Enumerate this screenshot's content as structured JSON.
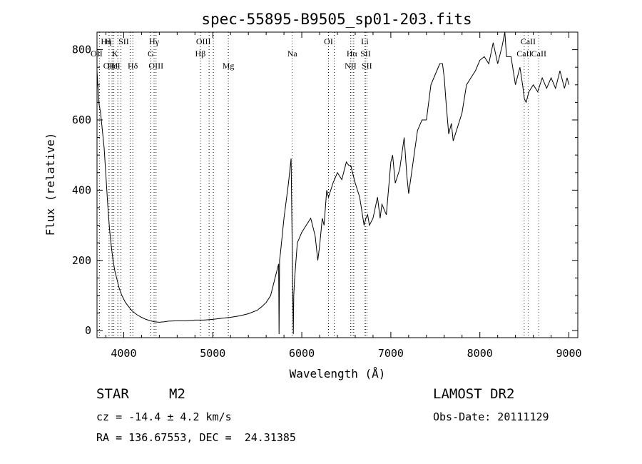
{
  "chart_data": {
    "type": "line",
    "title": "spec-55895-B9505_sp01-203.fits",
    "xlabel": "Wavelength (Å)",
    "ylabel": "Flux (relative)",
    "xlim": [
      3700,
      9100
    ],
    "ylim": [
      -20,
      850
    ],
    "grid": false,
    "x_ticks": [
      4000,
      5000,
      6000,
      7000,
      8000,
      9000
    ],
    "y_ticks": [
      0,
      200,
      400,
      600,
      800
    ],
    "series": [
      {
        "x": [
          3700,
          3720,
          3740,
          3760,
          3780,
          3800,
          3820,
          3840,
          3860,
          3880,
          3900,
          3920,
          3950,
          3980,
          4000,
          4020,
          4050,
          4080,
          4100,
          4150,
          4200,
          4250,
          4300,
          4350,
          4400,
          4450,
          4500,
          4600,
          4700,
          4800,
          4900,
          5000,
          5100,
          5200,
          5300,
          5400,
          5500,
          5550,
          5600,
          5650,
          5700,
          5740,
          5745,
          5750,
          5760,
          5800,
          5850,
          5880,
          5900,
          5905,
          5910,
          5920,
          5950,
          6000,
          6050,
          6100,
          6150,
          6180,
          6200,
          6230,
          6250,
          6280,
          6300,
          6350,
          6400,
          6450,
          6500,
          6530,
          6550,
          6570,
          6600,
          6650,
          6700,
          6720,
          6740,
          6760,
          6800,
          6850,
          6880,
          6900,
          6950,
          6980,
          7000,
          7020,
          7050,
          7100,
          7150,
          7180,
          7200,
          7250,
          7300,
          7350,
          7400,
          7450,
          7500,
          7550,
          7580,
          7600,
          7620,
          7650,
          7680,
          7700,
          7750,
          7800,
          7850,
          7900,
          7950,
          8000,
          8050,
          8100,
          8150,
          8200,
          8250,
          8280,
          8300,
          8350,
          8400,
          8450,
          8480,
          8500,
          8520,
          8550,
          8600,
          8650,
          8700,
          8750,
          8800,
          8850,
          8900,
          8950,
          8980,
          9000
        ],
        "y": [
          740,
          650,
          620,
          570,
          520,
          440,
          360,
          290,
          240,
          200,
          170,
          150,
          120,
          100,
          90,
          80,
          70,
          60,
          55,
          45,
          38,
          32,
          28,
          25,
          24,
          25,
          27,
          28,
          28,
          30,
          30,
          32,
          35,
          38,
          42,
          48,
          58,
          68,
          80,
          100,
          150,
          190,
          -10,
          200,
          220,
          320,
          420,
          490,
          80,
          -10,
          100,
          150,
          250,
          280,
          300,
          320,
          270,
          200,
          240,
          320,
          300,
          400,
          380,
          420,
          450,
          430,
          480,
          470,
          470,
          450,
          420,
          380,
          300,
          320,
          330,
          300,
          320,
          380,
          320,
          360,
          330,
          420,
          480,
          500,
          420,
          460,
          550,
          440,
          390,
          480,
          570,
          600,
          600,
          700,
          730,
          760,
          760,
          720,
          650,
          560,
          590,
          540,
          580,
          620,
          700,
          720,
          740,
          770,
          780,
          760,
          820,
          760,
          810,
          860,
          780,
          780,
          700,
          750,
          700,
          660,
          650,
          680,
          700,
          680,
          720,
          690,
          720,
          690,
          740,
          690,
          720,
          700
        ]
      }
    ],
    "lines": [
      {
        "label": "OII",
        "wl": 3727,
        "row": 2,
        "color": "#000000",
        "dx": -4
      },
      {
        "label": "Hη",
        "wl": 3835,
        "row": 0,
        "color": "#000000",
        "dx": -4
      },
      {
        "label": "OIII",
        "wl": 3869,
        "row": 3,
        "color": "#000000",
        "dx": -2
      },
      {
        "label": "HeI",
        "wl": 3889,
        "row": 3,
        "color": "#000000",
        "dx": 0
      },
      {
        "label": "K",
        "wl": 3934,
        "row": 2,
        "color": "#000000",
        "dx": -4
      },
      {
        "label": "H",
        "wl": 3969,
        "row": 0,
        "color": "#000000",
        "dx": -18
      },
      {
        "label": "SII",
        "wl": 4072,
        "row": 0,
        "color": "#000000",
        "dx": -9
      },
      {
        "label": "Hδ",
        "wl": 4102,
        "row": 3,
        "color": "#000000",
        "dx": 0
      },
      {
        "label": "G",
        "wl": 4304,
        "row": 2,
        "color": "#000000",
        "dx": 0
      },
      {
        "label": "Hγ",
        "wl": 4341,
        "row": 0,
        "color": "#000000",
        "dx": 0
      },
      {
        "label": "OIII",
        "wl": 4363,
        "row": 3,
        "color": "#000000",
        "dx": 0
      },
      {
        "label": "Hβ",
        "wl": 4861,
        "row": 2,
        "color": "#000000",
        "dx": 0
      },
      {
        "label": "OIII",
        "wl": 4959,
        "row": 0,
        "color": "#000000",
        "dx": -8
      },
      {
        "label": "OIII",
        "wl": 5007,
        "row": -1,
        "color": "#000000",
        "dx": 0
      },
      {
        "label": "Mg",
        "wl": 5175,
        "row": 3,
        "color": "#000000",
        "dx": 0
      },
      {
        "label": "Na",
        "wl": 5893,
        "row": 2,
        "color": "#c00000",
        "dx": 0
      },
      {
        "label": "OI",
        "wl": 6300,
        "row": 0,
        "color": "#000000",
        "dx": 0
      },
      {
        "label": "OI",
        "wl": 6364,
        "row": -1,
        "color": "#000000",
        "dx": 0
      },
      {
        "label": "NII",
        "wl": 6548,
        "row": 3,
        "color": "#000000",
        "dx": 0
      },
      {
        "label": "Hα",
        "wl": 6563,
        "row": 2,
        "color": "#c00000",
        "dx": 0
      },
      {
        "label": "NII",
        "wl": 6583,
        "row": -1,
        "color": "#000000",
        "dx": 0
      },
      {
        "label": "Li",
        "wl": 6708,
        "row": 0,
        "color": "#c00000",
        "dx": 0
      },
      {
        "label": "SII",
        "wl": 6716,
        "row": 2,
        "color": "#c00000",
        "dx": 0
      },
      {
        "label": "SII",
        "wl": 6731,
        "row": 3,
        "color": "#c00000",
        "dx": 0
      },
      {
        "label": "CaII",
        "wl": 8498,
        "row": 1,
        "color": "#c00000",
        "dx": 0
      },
      {
        "label": "CaII",
        "wl": 8542,
        "row": 0,
        "color": "#c00000",
        "dx": 0
      },
      {
        "label": "CaII",
        "wl": 8662,
        "row": 2,
        "color": "#c00000",
        "dx": 0
      }
    ]
  },
  "info": {
    "object_class": "STAR",
    "subclass": "M2",
    "survey": "LAMOST DR2",
    "cz": "cz = -14.4 ± 4.2 km/s",
    "obs_date": "Obs-Date: 20111129",
    "coords": "RA = 136.67553, DEC =  24.31385"
  }
}
